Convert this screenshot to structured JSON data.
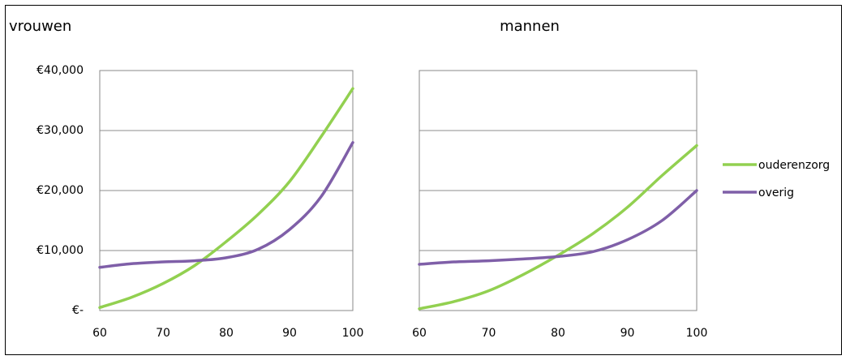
{
  "chart_data": [
    {
      "type": "line",
      "title": "vrouwen",
      "x": [
        60,
        65,
        70,
        75,
        80,
        85,
        90,
        95,
        100
      ],
      "xticks": [
        "60",
        "70",
        "80",
        "90",
        "100"
      ],
      "yticks": [
        "€-",
        "€10,000",
        "€20,000",
        "€30,000",
        "€40,000"
      ],
      "xlim": [
        60,
        100
      ],
      "ylim": [
        0,
        40000
      ],
      "grid": "horizontal",
      "series": [
        {
          "name": "ouderenzorg",
          "color": "#92d050",
          "values": [
            500,
            2200,
            4500,
            7500,
            11500,
            16000,
            21500,
            29000,
            37000
          ]
        },
        {
          "name": "overig",
          "color": "#7f5fa8",
          "values": [
            7200,
            7800,
            8100,
            8300,
            8800,
            10200,
            13500,
            19000,
            28000
          ]
        }
      ]
    },
    {
      "type": "line",
      "title": "mannen",
      "x": [
        60,
        65,
        70,
        75,
        80,
        85,
        90,
        95,
        100
      ],
      "xticks": [
        "60",
        "70",
        "80",
        "90",
        "100"
      ],
      "xlim": [
        60,
        100
      ],
      "ylim": [
        0,
        40000
      ],
      "grid": "horizontal",
      "series": [
        {
          "name": "ouderenzorg",
          "color": "#92d050",
          "values": [
            300,
            1500,
            3300,
            6000,
            9200,
            12800,
            17200,
            22500,
            27500
          ]
        },
        {
          "name": "overig",
          "color": "#7f5fa8",
          "values": [
            7700,
            8100,
            8300,
            8600,
            9000,
            9800,
            11800,
            15000,
            20000
          ]
        }
      ]
    }
  ],
  "legend": {
    "position": "right",
    "items": [
      {
        "label": "ouderenzorg",
        "color": "#92d050"
      },
      {
        "label": "overig",
        "color": "#7f5fa8"
      }
    ]
  }
}
